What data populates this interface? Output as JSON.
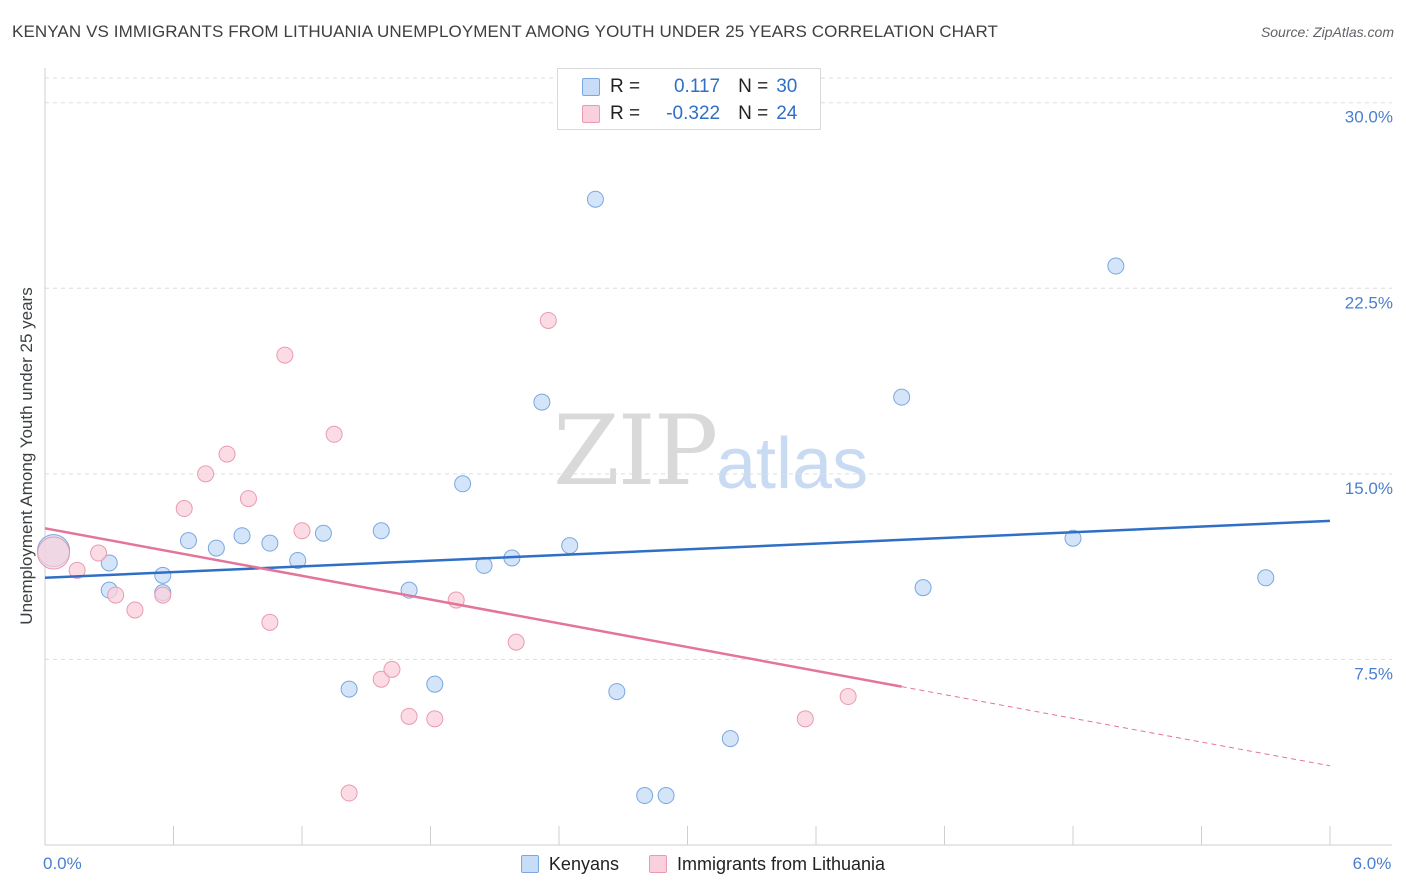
{
  "title": "KENYAN VS IMMIGRANTS FROM LITHUANIA UNEMPLOYMENT AMONG YOUTH UNDER 25 YEARS CORRELATION CHART",
  "source": "Source: ZipAtlas.com",
  "watermark": {
    "zip": "ZIP",
    "atlas": "atlas"
  },
  "legend": {
    "r_label": "R =",
    "n_label": "N =",
    "rows": [
      {
        "r": "0.117",
        "n": "30"
      },
      {
        "r": "-0.322",
        "n": "24"
      }
    ]
  },
  "colors": {
    "blue_fill": "#c7dcf7",
    "blue_stroke": "#7aa7e0",
    "blue_line": "#2f6fc6",
    "pink_fill": "#f9d0dc",
    "pink_stroke": "#ea9ab2",
    "pink_line": "#e4749a",
    "tick_label": "#4a7fcf",
    "grid": "#dddddd"
  },
  "chart_data": {
    "type": "scatter",
    "title": "KENYAN VS IMMIGRANTS FROM LITHUANIA UNEMPLOYMENT AMONG YOUTH UNDER 25 YEARS CORRELATION CHART",
    "xlabel": "",
    "ylabel": "Unemployment Among Youth under 25 years",
    "xlim": [
      0,
      6
    ],
    "ylim": [
      0,
      31
    ],
    "x_tick_labels": [
      {
        "value": 0,
        "label": "0.0%"
      },
      {
        "value": 6,
        "label": "6.0%"
      }
    ],
    "y_ticks": [
      7.5,
      15,
      22.5,
      30
    ],
    "y_tick_labels": [
      "7.5%",
      "15.0%",
      "22.5%",
      "30.0%"
    ],
    "grid": true,
    "legend_position": "bottom",
    "series": [
      {
        "name": "Kenyans",
        "r": 0.117,
        "n": 30,
        "trend": {
          "x": [
            0,
            6
          ],
          "y": [
            10.8,
            13.1
          ],
          "dashed_from": null
        },
        "points": [
          {
            "x": 0.04,
            "y": 11.9,
            "big": true
          },
          {
            "x": 0.3,
            "y": 10.3
          },
          {
            "x": 0.3,
            "y": 11.4
          },
          {
            "x": 0.55,
            "y": 10.2
          },
          {
            "x": 0.55,
            "y": 10.9
          },
          {
            "x": 0.67,
            "y": 12.3
          },
          {
            "x": 0.8,
            "y": 12.0
          },
          {
            "x": 0.92,
            "y": 12.5
          },
          {
            "x": 1.05,
            "y": 12.2
          },
          {
            "x": 1.18,
            "y": 11.5
          },
          {
            "x": 1.3,
            "y": 12.6
          },
          {
            "x": 1.42,
            "y": 6.3
          },
          {
            "x": 1.57,
            "y": 12.7
          },
          {
            "x": 1.7,
            "y": 10.3
          },
          {
            "x": 1.82,
            "y": 6.5
          },
          {
            "x": 1.95,
            "y": 14.6
          },
          {
            "x": 2.05,
            "y": 11.3
          },
          {
            "x": 2.18,
            "y": 11.6
          },
          {
            "x": 2.32,
            "y": 17.9
          },
          {
            "x": 2.45,
            "y": 12.1
          },
          {
            "x": 2.57,
            "y": 26.1
          },
          {
            "x": 2.67,
            "y": 6.2
          },
          {
            "x": 2.8,
            "y": 2.0
          },
          {
            "x": 2.9,
            "y": 2.0
          },
          {
            "x": 3.2,
            "y": 4.3
          },
          {
            "x": 4.0,
            "y": 18.1
          },
          {
            "x": 4.1,
            "y": 10.4
          },
          {
            "x": 4.8,
            "y": 12.4
          },
          {
            "x": 5.0,
            "y": 23.4
          },
          {
            "x": 5.7,
            "y": 10.8
          }
        ]
      },
      {
        "name": "Immigrants from Lithuania",
        "r": -0.322,
        "n": 24,
        "trend": {
          "x": [
            0,
            6
          ],
          "y": [
            12.8,
            3.2
          ],
          "dashed_from": 4.0
        },
        "points": [
          {
            "x": 0.04,
            "y": 11.8,
            "big": true
          },
          {
            "x": 0.15,
            "y": 11.1
          },
          {
            "x": 0.25,
            "y": 11.8
          },
          {
            "x": 0.33,
            "y": 10.1
          },
          {
            "x": 0.42,
            "y": 9.5
          },
          {
            "x": 0.55,
            "y": 10.1
          },
          {
            "x": 0.65,
            "y": 13.6
          },
          {
            "x": 0.75,
            "y": 15.0
          },
          {
            "x": 0.85,
            "y": 15.8
          },
          {
            "x": 0.95,
            "y": 14.0
          },
          {
            "x": 1.05,
            "y": 9.0
          },
          {
            "x": 1.12,
            "y": 19.8
          },
          {
            "x": 1.2,
            "y": 12.7
          },
          {
            "x": 1.35,
            "y": 16.6
          },
          {
            "x": 1.42,
            "y": 2.1
          },
          {
            "x": 1.57,
            "y": 6.7
          },
          {
            "x": 1.62,
            "y": 7.1
          },
          {
            "x": 1.7,
            "y": 5.2
          },
          {
            "x": 1.82,
            "y": 5.1
          },
          {
            "x": 1.92,
            "y": 9.9
          },
          {
            "x": 2.2,
            "y": 8.2
          },
          {
            "x": 2.35,
            "y": 21.2
          },
          {
            "x": 3.55,
            "y": 5.1
          },
          {
            "x": 3.75,
            "y": 6.0
          }
        ]
      }
    ]
  }
}
